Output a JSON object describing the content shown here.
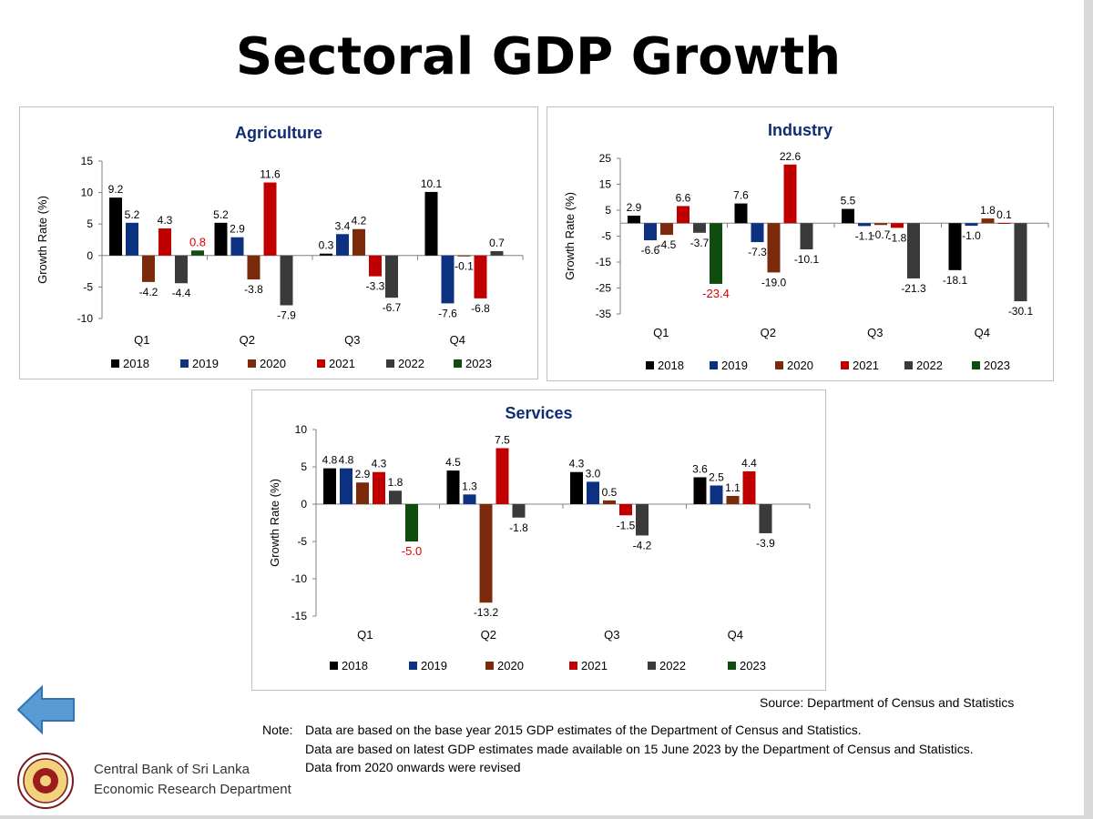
{
  "title": "Sectoral GDP Growth",
  "source": "Source: Department of Census and Statistics",
  "note_label": "Note:",
  "notes": [
    "Data are based on the base year 2015 GDP estimates of the Department of Census and Statistics.",
    "Data are based on latest GDP estimates made available on 15 June 2023 by the Department of Census and Statistics.",
    "Data from 2020 onwards were revised"
  ],
  "org": {
    "name": "Central Bank of Sri Lanka",
    "dept": "Economic Research Department"
  },
  "icons": {
    "back": "back-arrow-icon",
    "logo": "central-bank-logo-icon"
  },
  "colors": {
    "2018": "#000000",
    "2019": "#0b3180",
    "2020": "#7b2a0c",
    "2021": "#c00000",
    "2022": "#3a3a3a",
    "2023": "#0e4d0e",
    "highlight_label": "#e00000",
    "title_blue": "#0f2b73",
    "back_arrow": "#5b9bd5"
  },
  "chart_data": [
    {
      "type": "bar",
      "title": "Agriculture",
      "ylabel": "Growth Rate (%)",
      "ylim": [
        -10,
        15
      ],
      "yticks": [
        15,
        10,
        5,
        0,
        -5,
        -10
      ],
      "categories": [
        "Q1",
        "Q2",
        "Q3",
        "Q4"
      ],
      "series": [
        {
          "name": "2018",
          "values": [
            9.2,
            5.2,
            0.3,
            10.1
          ]
        },
        {
          "name": "2019",
          "values": [
            5.2,
            2.9,
            3.4,
            -7.6
          ]
        },
        {
          "name": "2020",
          "values": [
            -4.2,
            -3.8,
            4.2,
            -0.1
          ]
        },
        {
          "name": "2021",
          "values": [
            4.3,
            11.6,
            -3.3,
            -6.8
          ]
        },
        {
          "name": "2022",
          "values": [
            -4.4,
            -7.9,
            -6.7,
            0.7
          ]
        },
        {
          "name": "2023",
          "values": [
            0.8,
            null,
            null,
            null
          ]
        }
      ],
      "labels": [
        "9.2",
        "5.2",
        "-4.2",
        "4.3",
        "-4.4",
        "0.8",
        "5.2",
        "2.9",
        "-3.8",
        "11.6",
        "-7.9",
        "0.3",
        "3.4",
        "4.2",
        "-3.3",
        "-6.7",
        "10.1",
        "-7.6",
        "-0.1",
        "-6.8",
        "0.7"
      ],
      "highlight": [
        "0.8"
      ],
      "legend": "bottom"
    },
    {
      "type": "bar",
      "title": "Industry",
      "ylabel": "Growth Rate (%)",
      "ylim": [
        -35,
        25
      ],
      "yticks": [
        25,
        15,
        5,
        -5,
        -15,
        -25,
        -35
      ],
      "categories": [
        "Q1",
        "Q2",
        "Q3",
        "Q4"
      ],
      "series": [
        {
          "name": "2018",
          "values": [
            2.9,
            7.6,
            5.5,
            -18.1
          ]
        },
        {
          "name": "2019",
          "values": [
            -6.6,
            -7.3,
            -1.1,
            -1.0
          ]
        },
        {
          "name": "2020",
          "values": [
            -4.5,
            -19.0,
            -0.7,
            1.8
          ]
        },
        {
          "name": "2021",
          "values": [
            6.6,
            22.6,
            -1.8,
            0.1
          ]
        },
        {
          "name": "2022",
          "values": [
            -3.7,
            -10.1,
            -21.3,
            -30.1
          ]
        },
        {
          "name": "2023",
          "values": [
            -23.4,
            null,
            null,
            null
          ]
        }
      ],
      "labels": [
        "2.9",
        "-6.6",
        "-4.5",
        "6.6",
        "-3.7",
        "-23.4",
        "7.6",
        "-7.3",
        "-19.0",
        "22.6",
        "-10.1",
        "5.5",
        "-1.1",
        "-0.7",
        "-1.8",
        "-21.3",
        "-18.1",
        "-1.0",
        "1.8",
        "0.1",
        "-30.1"
      ],
      "highlight": [
        "-23.4"
      ],
      "legend": "bottom"
    },
    {
      "type": "bar",
      "title": "Services",
      "ylabel": "Growth Rate (%)",
      "ylim": [
        -15,
        10
      ],
      "yticks": [
        10,
        5,
        0,
        -5,
        -10,
        -15
      ],
      "categories": [
        "Q1",
        "Q2",
        "Q3",
        "Q4"
      ],
      "series": [
        {
          "name": "2018",
          "values": [
            4.8,
            4.5,
            4.3,
            3.6
          ]
        },
        {
          "name": "2019",
          "values": [
            4.8,
            1.3,
            3.0,
            2.5
          ]
        },
        {
          "name": "2020",
          "values": [
            2.9,
            -13.2,
            0.5,
            1.1
          ]
        },
        {
          "name": "2021",
          "values": [
            4.3,
            7.5,
            -1.5,
            4.4
          ]
        },
        {
          "name": "2022",
          "values": [
            1.8,
            -1.8,
            -4.2,
            -3.9
          ]
        },
        {
          "name": "2023",
          "values": [
            -5.0,
            null,
            null,
            null
          ]
        }
      ],
      "labels": [
        "4.8",
        "4.8",
        "2.9",
        "4.3",
        "1.8",
        "-5.0",
        "4.5",
        "1.3",
        "-13.2",
        "7.5",
        "-1.8",
        "4.3",
        "3.0",
        "0.5",
        "-1.5",
        "-4.2",
        "3.6",
        "2.5",
        "1.1",
        "4.4",
        "-3.9"
      ],
      "highlight": [
        "-5.0"
      ],
      "legend": "bottom"
    }
  ]
}
